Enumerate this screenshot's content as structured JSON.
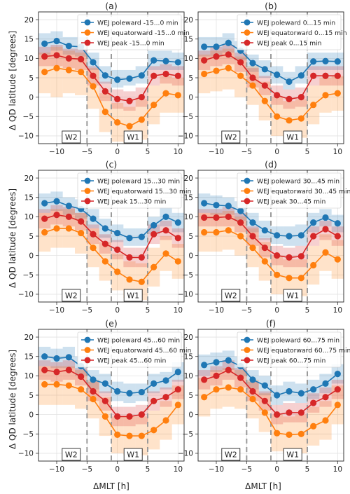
{
  "figure": {
    "ylabel": "Δ QD latitude [degrees]",
    "xlabel": "ΔMLT [h]",
    "box_labels": [
      "W2",
      "W1"
    ],
    "colors": {
      "poleward": "#1f77b4",
      "equatorward": "#ff7f0e",
      "peak": "#d62728"
    }
  },
  "chart_data": [
    {
      "type": "line",
      "label": "(a)",
      "x": [
        -12,
        -10,
        -8,
        -6,
        -4,
        -2,
        0,
        2,
        4,
        6,
        8,
        10
      ],
      "xlim": [
        -13,
        11
      ],
      "ylim": [
        -12,
        22
      ],
      "xticks": [
        -10,
        -5,
        0,
        5,
        10
      ],
      "yticks": [
        -10,
        -5,
        0,
        5,
        10,
        15,
        20
      ],
      "dashed_x": [
        -5,
        -1,
        5
      ],
      "grid": true,
      "legend": "top-right",
      "series": [
        {
          "name": "WEJ poleward -15...0 min",
          "key": "poleward",
          "values": [
            13.8,
            14.5,
            13.2,
            13.0,
            9.0,
            5.6,
            4.5,
            4.8,
            5.6,
            9.5,
            9.3,
            9.0
          ],
          "lower": [
            11,
            12,
            11,
            10.5,
            7,
            3.5,
            2.5,
            3,
            3.5,
            7,
            7,
            7
          ],
          "upper": [
            16.5,
            17,
            15.5,
            15.5,
            11.5,
            8,
            7,
            7,
            8,
            12,
            12,
            11.5
          ]
        },
        {
          "name": "WEJ equatorward -15...0 min",
          "key": "equatorward",
          "values": [
            6.5,
            7.5,
            7.0,
            6.5,
            2.8,
            -3.8,
            -6.5,
            -7.5,
            -5.8,
            -2.0,
            1.0,
            0.5
          ],
          "lower": [
            1,
            0,
            1,
            0.5,
            -3,
            -9,
            -11.5,
            -12,
            -11,
            -7,
            -4,
            -4
          ],
          "upper": [
            11.5,
            13,
            12,
            11.5,
            7.5,
            1,
            -1.5,
            -2.5,
            -0.5,
            3,
            5.5,
            5
          ]
        },
        {
          "name": "WEJ peak -15...0 min",
          "key": "peak",
          "values": [
            10.5,
            10.8,
            10.0,
            9.8,
            5.5,
            1.5,
            -0.5,
            -1.0,
            0.0,
            5.5,
            6.0,
            5.5
          ],
          "lower": [
            8,
            8,
            7.5,
            7,
            3,
            -1,
            -3,
            -3.5,
            -2.5,
            3,
            3.5,
            3
          ],
          "upper": [
            13,
            13.5,
            12.5,
            12.5,
            8,
            4,
            2,
            1.5,
            2.5,
            8,
            8.5,
            8
          ]
        }
      ]
    },
    {
      "type": "line",
      "label": "(b)",
      "x": [
        -12,
        -10,
        -8,
        -6,
        -4,
        -2,
        0,
        2,
        4,
        6,
        8,
        10
      ],
      "xlim": [
        -13,
        11
      ],
      "ylim": [
        -12,
        22
      ],
      "xticks": [
        -10,
        -5,
        0,
        5,
        10
      ],
      "yticks": [
        -10,
        -5,
        0,
        5,
        10,
        15,
        20
      ],
      "dashed_x": [
        -5,
        -1,
        5
      ],
      "grid": true,
      "legend": "top-right",
      "series": [
        {
          "name": "WEJ poleward 0...15 min",
          "key": "poleward",
          "values": [
            13.0,
            13.0,
            14.0,
            12.0,
            8.8,
            7.2,
            5.8,
            4.0,
            5.6,
            9.2,
            9.3,
            9.2
          ],
          "lower": [
            10.5,
            10.5,
            11.5,
            9.5,
            6.5,
            5,
            3.5,
            2,
            3.5,
            7,
            7,
            7
          ],
          "upper": [
            15.5,
            15.5,
            16.5,
            14.5,
            11,
            9.5,
            8,
            6.5,
            8,
            11.5,
            11.5,
            11.5
          ]
        },
        {
          "name": "WEJ equatorward 0...15 min",
          "key": "equatorward",
          "values": [
            6.0,
            6.8,
            7.5,
            5.5,
            3.0,
            -1.0,
            -5.0,
            -6.0,
            -5.5,
            -2.0,
            0.5,
            1.0
          ],
          "lower": [
            1,
            1.5,
            2,
            0,
            -2,
            -6,
            -10,
            -11,
            -10.5,
            -7,
            -4,
            -3.5
          ],
          "upper": [
            11,
            12,
            12.5,
            10.5,
            8,
            4,
            0,
            -1,
            -0.5,
            3,
            5,
            5.5
          ]
        },
        {
          "name": "WEJ peak 0...15 min",
          "key": "peak",
          "values": [
            9.5,
            10.5,
            11.0,
            9.0,
            5.0,
            3.0,
            0.5,
            -0.5,
            0.0,
            5.5,
            5.5,
            5.5
          ],
          "lower": [
            7,
            8,
            8.5,
            6.5,
            2.5,
            0.5,
            -2,
            -3,
            -2.5,
            3,
            3,
            3
          ],
          "upper": [
            12,
            13,
            13.5,
            11.5,
            7.5,
            5.5,
            3,
            2,
            2.5,
            8,
            8,
            8
          ]
        }
      ]
    },
    {
      "type": "line",
      "label": "(c)",
      "x": [
        -12,
        -10,
        -8,
        -6,
        -4,
        -2,
        0,
        2,
        4,
        6,
        8,
        10
      ],
      "xlim": [
        -13,
        11
      ],
      "ylim": [
        -12,
        22
      ],
      "xticks": [
        -10,
        -5,
        0,
        5,
        10
      ],
      "yticks": [
        -10,
        -5,
        0,
        5,
        10,
        15,
        20
      ],
      "dashed_x": [
        -5,
        -1,
        5
      ],
      "grid": true,
      "legend": "top-right",
      "series": [
        {
          "name": "WEJ poleward 15...30 min",
          "key": "poleward",
          "values": [
            13.5,
            14.0,
            12.8,
            12.0,
            9.5,
            7.0,
            5.8,
            4.5,
            4.8,
            7.8,
            10.0,
            8.5
          ],
          "lower": [
            11,
            11.5,
            10.5,
            9.5,
            7,
            4.5,
            3.5,
            2.5,
            2.5,
            5.5,
            7.5,
            6
          ],
          "upper": [
            16,
            16.5,
            15,
            14.5,
            12,
            9.5,
            8,
            7,
            7,
            10,
            12.5,
            11
          ]
        },
        {
          "name": "WEJ equatorward 15...30 min",
          "key": "equatorward",
          "values": [
            6.0,
            7.0,
            7.0,
            5.8,
            2.0,
            -1.5,
            -4.2,
            -6.2,
            -6.8,
            -3.0,
            0.5,
            -1.5
          ],
          "lower": [
            1,
            2,
            2,
            0.5,
            -3,
            -6.5,
            -9,
            -11,
            -11.5,
            -8,
            -4,
            -6
          ],
          "upper": [
            11,
            12,
            12,
            11,
            7,
            3.5,
            0.5,
            -1.5,
            -2,
            2,
            5,
            3
          ]
        },
        {
          "name": "WEJ peak 15...30 min",
          "key": "peak",
          "values": [
            9.5,
            10.5,
            10.0,
            8.8,
            5.5,
            3.0,
            1.5,
            -0.5,
            -0.5,
            5.5,
            6.5,
            4.5
          ],
          "lower": [
            7,
            8,
            7.5,
            6.5,
            3,
            0.5,
            -1,
            -3,
            -3,
            3,
            4,
            2
          ],
          "upper": [
            12,
            13,
            12.5,
            11,
            8,
            5.5,
            4,
            2,
            2,
            8,
            9,
            7
          ]
        }
      ]
    },
    {
      "type": "line",
      "label": "(d)",
      "x": [
        -12,
        -10,
        -8,
        -6,
        -4,
        -2,
        0,
        2,
        4,
        6,
        8,
        10
      ],
      "xlim": [
        -13,
        11
      ],
      "ylim": [
        -12,
        22
      ],
      "xticks": [
        -10,
        -5,
        0,
        5,
        10
      ],
      "yticks": [
        -10,
        -5,
        0,
        5,
        10,
        15,
        20
      ],
      "dashed_x": [
        -5,
        -1,
        5
      ],
      "grid": true,
      "legend": "top-right",
      "series": [
        {
          "name": "WEJ poleward 30...45 min",
          "key": "poleward",
          "values": [
            13.5,
            13.0,
            12.8,
            11.5,
            8.5,
            6.5,
            5.2,
            5.0,
            5.2,
            8.5,
            9.8,
            8.3
          ],
          "lower": [
            11,
            10.5,
            10.5,
            9,
            6,
            4,
            3,
            2.5,
            2.5,
            6,
            7.5,
            6
          ],
          "upper": [
            16,
            15.5,
            15,
            14,
            11,
            9,
            7.5,
            7.5,
            8,
            11,
            12,
            10.5
          ]
        },
        {
          "name": "WEJ equatorward 30...45 min",
          "key": "equatorward",
          "values": [
            6.0,
            6.0,
            6.5,
            5.0,
            2.0,
            -1.5,
            -5.0,
            -5.8,
            -5.8,
            -2.5,
            0.8,
            -1.0
          ],
          "lower": [
            1,
            1,
            1.5,
            0,
            -3,
            -6.5,
            -10,
            -10.5,
            -10.5,
            -7.5,
            -4,
            -6
          ],
          "upper": [
            11,
            11,
            11.5,
            10,
            7,
            3.5,
            0,
            -1,
            -1,
            2.5,
            5.5,
            4
          ]
        },
        {
          "name": "WEJ peak 30...45 min",
          "key": "peak",
          "values": [
            9.8,
            9.8,
            10.0,
            8.5,
            5.0,
            2.0,
            0.0,
            -0.5,
            -0.2,
            5.0,
            6.8,
            5.0
          ],
          "lower": [
            7.5,
            7.5,
            7.5,
            6,
            2.5,
            -0.5,
            -2.5,
            -3,
            -3,
            2.5,
            4,
            2.5
          ],
          "upper": [
            12,
            12,
            12.5,
            11,
            7.5,
            4.5,
            2.5,
            2,
            2.5,
            7.5,
            9,
            7.5
          ]
        }
      ]
    },
    {
      "type": "line",
      "label": "(e)",
      "x": [
        -12,
        -10,
        -8,
        -6,
        -4,
        -2,
        0,
        2,
        4,
        6,
        8,
        10
      ],
      "xlim": [
        -13,
        11
      ],
      "ylim": [
        -12,
        22
      ],
      "xticks": [
        -10,
        -5,
        0,
        5,
        10
      ],
      "yticks": [
        -10,
        -5,
        0,
        5,
        10,
        15,
        20
      ],
      "dashed_x": [
        -5,
        -1,
        5
      ],
      "grid": true,
      "legend": "top-right",
      "series": [
        {
          "name": "WEJ poleward 45...60 min",
          "key": "poleward",
          "values": [
            15.0,
            14.5,
            14.8,
            12.5,
            9.0,
            8.0,
            6.0,
            5.5,
            5.8,
            8.0,
            8.8,
            11.0
          ],
          "lower": [
            12.5,
            12,
            12,
            10,
            6.5,
            5.5,
            3.5,
            3,
            3.5,
            5.5,
            6.5,
            8.5
          ],
          "upper": [
            17.5,
            17,
            17.5,
            15,
            11.5,
            10.5,
            8.5,
            8,
            8,
            10.5,
            11,
            13.5
          ]
        },
        {
          "name": "WEJ equatorward 45...60 min",
          "key": "equatorward",
          "values": [
            7.8,
            7.8,
            7.5,
            6.5,
            4.0,
            -0.5,
            -5.2,
            -5.5,
            -5.5,
            -4.0,
            -1.5,
            2.5
          ],
          "lower": [
            2.5,
            2.5,
            2.5,
            1.5,
            -1,
            -5.5,
            -10,
            -10.5,
            -10.5,
            -9,
            -6.5,
            -2.5
          ],
          "upper": [
            12.5,
            12.5,
            12.5,
            11.5,
            9,
            4.5,
            -0.5,
            -0.5,
            -0.5,
            1,
            3.5,
            7.5
          ]
        },
        {
          "name": "WEJ peak 45...60 min",
          "key": "peak",
          "values": [
            11.5,
            11.0,
            11.5,
            9.8,
            6.0,
            3.5,
            -0.5,
            -0.5,
            0.0,
            3.5,
            4.5,
            6.5
          ],
          "lower": [
            9,
            8.5,
            9,
            7.5,
            3.5,
            1,
            -3,
            -3,
            -2.5,
            1,
            2,
            4
          ],
          "upper": [
            14,
            13.5,
            14,
            12,
            8.5,
            6,
            2,
            2,
            2.5,
            6,
            7,
            9
          ]
        }
      ]
    },
    {
      "type": "line",
      "label": "(f)",
      "x": [
        -12,
        -10,
        -8,
        -6,
        -4,
        -2,
        0,
        2,
        4,
        6,
        8,
        10
      ],
      "xlim": [
        -13,
        11
      ],
      "ylim": [
        -12,
        22
      ],
      "xticks": [
        -10,
        -5,
        0,
        5,
        10
      ],
      "yticks": [
        -10,
        -5,
        0,
        5,
        10,
        15,
        20
      ],
      "dashed_x": [
        -5,
        -1,
        5
      ],
      "grid": true,
      "legend": "top-right",
      "series": [
        {
          "name": "WEJ poleward 60...75 min",
          "key": "poleward",
          "values": [
            12.8,
            13.5,
            14.0,
            12.5,
            9.0,
            7.5,
            5.0,
            6.0,
            5.5,
            6.5,
            8.0,
            10.5
          ],
          "lower": [
            10,
            11,
            11.5,
            10,
            6.5,
            5,
            2.5,
            3.5,
            3,
            4,
            5.5,
            8
          ],
          "upper": [
            15.5,
            16,
            16.5,
            15,
            11.5,
            10,
            7.5,
            8.5,
            8,
            9,
            10.5,
            13
          ]
        },
        {
          "name": "WEJ equatorward 60...75 min",
          "key": "equatorward",
          "values": [
            4.5,
            6.5,
            7.0,
            6.5,
            4.0,
            0.5,
            -4.8,
            -5.2,
            -5.0,
            -3.0,
            -1.5,
            2.5
          ],
          "lower": [
            -0.5,
            1.5,
            2,
            1.5,
            -1,
            -4.5,
            -9.5,
            -10,
            -10,
            -8,
            -6.5,
            -2.5
          ],
          "upper": [
            9.5,
            11.5,
            12,
            11.5,
            9,
            5.5,
            0,
            -0.5,
            0,
            2,
            3.5,
            7.5
          ]
        },
        {
          "name": "WEJ peak 60...75 min",
          "key": "peak",
          "values": [
            9.0,
            10.0,
            11.5,
            9.5,
            6.0,
            3.5,
            0.0,
            0.5,
            0.5,
            3.0,
            4.5,
            6.5
          ],
          "lower": [
            6.5,
            7.5,
            9,
            7,
            3.5,
            1,
            -2.5,
            -2,
            -2,
            0.5,
            2,
            4
          ],
          "upper": [
            11.5,
            12.5,
            14,
            12,
            8.5,
            6,
            2.5,
            3,
            3,
            5.5,
            7,
            9
          ]
        }
      ]
    }
  ]
}
